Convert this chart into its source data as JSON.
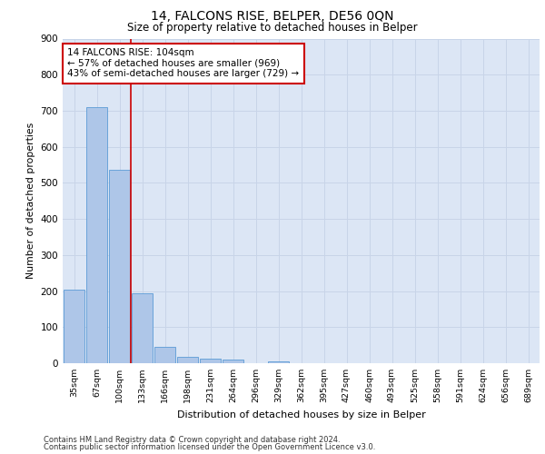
{
  "title": "14, FALCONS RISE, BELPER, DE56 0QN",
  "subtitle": "Size of property relative to detached houses in Belper",
  "xlabel": "Distribution of detached houses by size in Belper",
  "ylabel": "Number of detached properties",
  "categories": [
    "35sqm",
    "67sqm",
    "100sqm",
    "133sqm",
    "166sqm",
    "198sqm",
    "231sqm",
    "264sqm",
    "296sqm",
    "329sqm",
    "362sqm",
    "395sqm",
    "427sqm",
    "460sqm",
    "493sqm",
    "525sqm",
    "558sqm",
    "591sqm",
    "624sqm",
    "656sqm",
    "689sqm"
  ],
  "bar_values": [
    203,
    710,
    535,
    193,
    46,
    18,
    13,
    10,
    0,
    5,
    0,
    0,
    0,
    0,
    0,
    0,
    0,
    0,
    0,
    0,
    0
  ],
  "bar_color": "#aec6e8",
  "bar_edge_color": "#5b9bd5",
  "ylim": [
    0,
    900
  ],
  "yticks": [
    0,
    100,
    200,
    300,
    400,
    500,
    600,
    700,
    800,
    900
  ],
  "annotation_text": "14 FALCONS RISE: 104sqm\n← 57% of detached houses are smaller (969)\n43% of semi-detached houses are larger (729) →",
  "annotation_box_color": "#ffffff",
  "annotation_box_edge": "#cc0000",
  "vline_color": "#cc0000",
  "grid_color": "#c8d4e8",
  "background_color": "#dce6f5",
  "footer_line1": "Contains HM Land Registry data © Crown copyright and database right 2024.",
  "footer_line2": "Contains public sector information licensed under the Open Government Licence v3.0."
}
